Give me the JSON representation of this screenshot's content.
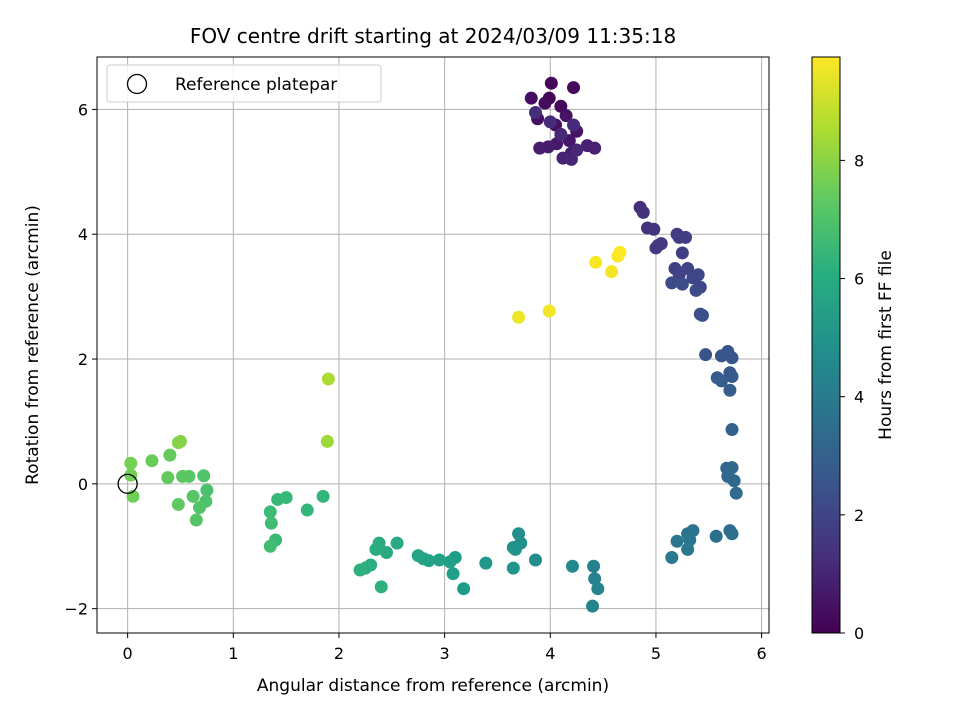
{
  "chart_data": {
    "type": "scatter",
    "title": "FOV centre drift starting at 2024/03/09 11:35:18",
    "xlabel": "Angular distance from reference (arcmin)",
    "ylabel": "Rotation from reference (arcmin)",
    "xlim": [
      -0.29,
      6.07
    ],
    "ylim": [
      -2.39,
      6.84
    ],
    "xticks": [
      0,
      1,
      2,
      3,
      4,
      5,
      6
    ],
    "yticks": [
      -2,
      0,
      2,
      4,
      6
    ],
    "xtick_labels": [
      "0",
      "1",
      "2",
      "3",
      "4",
      "5",
      "6"
    ],
    "ytick_labels": [
      "−2",
      "0",
      "2",
      "4",
      "6"
    ],
    "grid": true,
    "colorbar": {
      "label": "Hours from first FF file",
      "colormap": "viridis",
      "range": [
        0,
        9.75
      ],
      "ticks": [
        0,
        2,
        4,
        6,
        8
      ],
      "tick_labels": [
        "0",
        "2",
        "4",
        "6",
        "8"
      ]
    },
    "legend": {
      "placement": "top-left",
      "entries": [
        {
          "label": "Reference platepar",
          "marker": "open-circle",
          "x": 0,
          "y": 0
        }
      ]
    },
    "points": [
      [
        3.99,
        6.18,
        0.1
      ],
      [
        4.01,
        6.42,
        0.15
      ],
      [
        4.22,
        6.35,
        0.2
      ],
      [
        4.1,
        6.05,
        0.25
      ],
      [
        3.95,
        6.1,
        0.3
      ],
      [
        3.82,
        6.18,
        0.35
      ],
      [
        3.88,
        5.85,
        0.4
      ],
      [
        4.05,
        5.75,
        0.45
      ],
      [
        4.15,
        5.9,
        0.5
      ],
      [
        4.25,
        5.65,
        0.55
      ],
      [
        4.18,
        5.5,
        0.6
      ],
      [
        4.06,
        5.45,
        0.65
      ],
      [
        4.2,
        5.3,
        0.7
      ],
      [
        3.98,
        5.4,
        0.75
      ],
      [
        3.9,
        5.38,
        0.8
      ],
      [
        4.35,
        5.42,
        0.85
      ],
      [
        4.42,
        5.38,
        0.9
      ],
      [
        4.12,
        5.22,
        0.95
      ],
      [
        4.2,
        5.2,
        1.0
      ],
      [
        4.25,
        5.35,
        1.05
      ],
      [
        4.1,
        5.6,
        1.1
      ],
      [
        4.22,
        5.75,
        1.15
      ],
      [
        4.0,
        5.8,
        1.2
      ],
      [
        3.86,
        5.95,
        1.25
      ],
      [
        4.85,
        4.43,
        1.35
      ],
      [
        4.88,
        4.35,
        1.4
      ],
      [
        4.92,
        4.1,
        1.45
      ],
      [
        4.98,
        4.08,
        1.5
      ],
      [
        5.02,
        3.82,
        1.55
      ],
      [
        5.0,
        3.78,
        1.6
      ],
      [
        5.05,
        3.85,
        1.65
      ],
      [
        5.2,
        4.0,
        1.7
      ],
      [
        5.22,
        3.95,
        1.75
      ],
      [
        5.28,
        3.95,
        1.8
      ],
      [
        5.25,
        3.7,
        1.85
      ],
      [
        5.18,
        3.45,
        1.9
      ],
      [
        5.22,
        3.35,
        1.95
      ],
      [
        5.3,
        3.45,
        2.0
      ],
      [
        5.35,
        3.3,
        2.05
      ],
      [
        5.4,
        3.35,
        2.1
      ],
      [
        5.42,
        3.15,
        2.15
      ],
      [
        5.38,
        3.1,
        2.2
      ],
      [
        5.15,
        3.22,
        2.25
      ],
      [
        5.25,
        3.2,
        2.3
      ],
      [
        5.42,
        2.72,
        2.35
      ],
      [
        5.44,
        2.7,
        2.4
      ],
      [
        5.47,
        2.07,
        2.5
      ],
      [
        5.62,
        2.05,
        2.55
      ],
      [
        5.68,
        2.12,
        2.6
      ],
      [
        5.72,
        2.02,
        2.65
      ],
      [
        5.7,
        1.78,
        2.7
      ],
      [
        5.72,
        1.72,
        2.75
      ],
      [
        5.58,
        1.7,
        2.8
      ],
      [
        5.62,
        1.65,
        2.85
      ],
      [
        5.7,
        1.5,
        2.9
      ],
      [
        5.72,
        0.87,
        3.05
      ],
      [
        5.67,
        0.25,
        3.15
      ],
      [
        5.72,
        0.26,
        3.2
      ],
      [
        5.68,
        0.12,
        3.25
      ],
      [
        5.74,
        0.05,
        3.3
      ],
      [
        5.76,
        -0.15,
        3.35
      ],
      [
        5.7,
        -0.75,
        3.5
      ],
      [
        5.72,
        -0.8,
        3.55
      ],
      [
        5.57,
        -0.84,
        3.6
      ],
      [
        5.35,
        -0.75,
        3.7
      ],
      [
        5.3,
        -0.8,
        3.75
      ],
      [
        5.32,
        -0.9,
        3.8
      ],
      [
        5.2,
        -0.92,
        3.85
      ],
      [
        5.3,
        -1.05,
        3.9
      ],
      [
        5.15,
        -1.18,
        3.95
      ],
      [
        4.41,
        -1.32,
        4.3
      ],
      [
        4.42,
        -1.52,
        4.35
      ],
      [
        4.45,
        -1.68,
        4.4
      ],
      [
        4.4,
        -1.96,
        4.45
      ],
      [
        4.21,
        -1.32,
        4.6
      ],
      [
        3.86,
        -1.22,
        4.75
      ],
      [
        3.7,
        -0.8,
        4.85
      ],
      [
        3.72,
        -0.95,
        4.9
      ],
      [
        3.65,
        -1.02,
        4.95
      ],
      [
        3.67,
        -1.05,
        5.0
      ],
      [
        3.65,
        -1.35,
        5.05
      ],
      [
        3.39,
        -1.27,
        5.2
      ],
      [
        3.18,
        -1.68,
        5.35
      ],
      [
        3.1,
        -1.18,
        5.4
      ],
      [
        3.08,
        -1.44,
        5.45
      ],
      [
        3.05,
        -1.25,
        5.5
      ],
      [
        2.95,
        -1.22,
        5.55
      ],
      [
        2.85,
        -1.23,
        5.6
      ],
      [
        2.8,
        -1.2,
        5.65
      ],
      [
        2.75,
        -1.15,
        5.7
      ],
      [
        2.55,
        -0.95,
        5.85
      ],
      [
        2.45,
        -1.1,
        5.9
      ],
      [
        2.38,
        -0.95,
        5.95
      ],
      [
        2.35,
        -1.05,
        6.0
      ],
      [
        2.3,
        -1.3,
        6.05
      ],
      [
        2.25,
        -1.35,
        6.1
      ],
      [
        2.2,
        -1.38,
        6.15
      ],
      [
        2.4,
        -1.65,
        6.2
      ],
      [
        1.85,
        -0.2,
        6.4
      ],
      [
        1.7,
        -0.42,
        6.45
      ],
      [
        1.5,
        -0.22,
        6.5
      ],
      [
        1.42,
        -0.25,
        6.55
      ],
      [
        1.4,
        -0.9,
        6.6
      ],
      [
        1.35,
        -0.45,
        6.65
      ],
      [
        1.36,
        -0.63,
        6.7
      ],
      [
        1.35,
        -1.0,
        6.75
      ],
      [
        0.75,
        -0.1,
        6.9
      ],
      [
        0.74,
        -0.28,
        6.95
      ],
      [
        0.72,
        0.13,
        7.0
      ],
      [
        0.68,
        -0.38,
        7.05
      ],
      [
        0.65,
        -0.58,
        7.1
      ],
      [
        0.62,
        -0.2,
        7.15
      ],
      [
        0.58,
        0.12,
        7.2
      ],
      [
        0.52,
        0.12,
        7.25
      ],
      [
        0.48,
        -0.33,
        7.3
      ],
      [
        0.38,
        0.1,
        7.35
      ],
      [
        0.4,
        0.46,
        7.4
      ],
      [
        0.23,
        0.37,
        7.5
      ],
      [
        0.05,
        -0.2,
        7.6
      ],
      [
        0.03,
        0.14,
        7.65
      ],
      [
        0.03,
        0.33,
        7.7
      ],
      [
        0.48,
        0.66,
        7.9
      ],
      [
        0.5,
        0.68,
        7.95
      ],
      [
        1.89,
        0.68,
        8.3
      ],
      [
        1.9,
        1.68,
        8.5
      ],
      [
        3.7,
        2.67,
        9.5
      ],
      [
        3.99,
        2.77,
        9.55
      ],
      [
        4.58,
        3.4,
        9.6
      ],
      [
        4.43,
        3.55,
        9.65
      ],
      [
        4.64,
        3.65,
        9.7
      ],
      [
        4.66,
        3.71,
        9.75
      ]
    ]
  }
}
